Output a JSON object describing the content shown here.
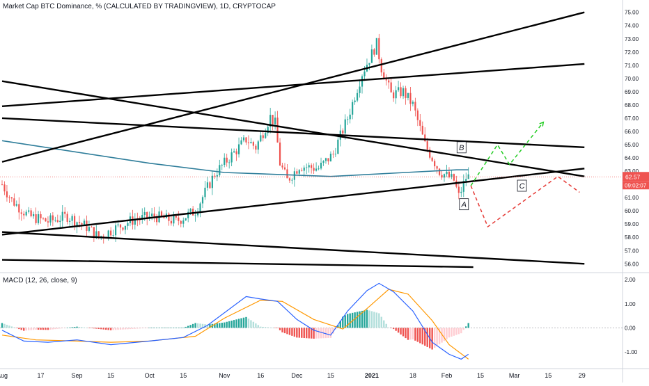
{
  "header": {
    "title": "Market Cap BTC Dominance, % (CALCULATED BY TRADINGVIEW), 1D, CRYPTOCAP",
    "macd_title": "MACD (12, 26, close, 9)"
  },
  "chart_data": [
    {
      "type": "candlestick",
      "title": "Market Cap BTC Dominance, % (CALCULATED BY TRADINGVIEW), 1D, CRYPTOCAP",
      "y_ticks": [
        "75.00",
        "74.00",
        "73.00",
        "72.00",
        "71.00",
        "70.00",
        "69.00",
        "68.00",
        "67.00",
        "66.00",
        "65.00",
        "64.00",
        "63.00",
        "62.00",
        "61.00",
        "60.00",
        "59.00",
        "58.00",
        "57.00",
        "56.00"
      ],
      "ylim": [
        55.7,
        75.3
      ],
      "x_tick_labels": [
        "Aug",
        "17",
        "Sep",
        "15",
        "Oct",
        "15",
        "Nov",
        "16",
        "Dec",
        "15",
        "2021",
        "18",
        "Feb",
        "15",
        "Mar",
        "15",
        "29"
      ],
      "close_anchor_points": [
        {
          "date": "2020-08-01",
          "value": 62.0
        },
        {
          "date": "2020-08-05",
          "value": 60.8
        },
        {
          "date": "2020-08-12",
          "value": 59.6
        },
        {
          "date": "2020-08-20",
          "value": 59.2
        },
        {
          "date": "2020-08-28",
          "value": 59.6
        },
        {
          "date": "2020-09-05",
          "value": 58.8
        },
        {
          "date": "2020-09-10",
          "value": 58.0
        },
        {
          "date": "2020-09-16",
          "value": 58.6
        },
        {
          "date": "2020-09-24",
          "value": 59.3
        },
        {
          "date": "2020-10-03",
          "value": 59.6
        },
        {
          "date": "2020-10-12",
          "value": 59.2
        },
        {
          "date": "2020-10-20",
          "value": 60.0
        },
        {
          "date": "2020-10-28",
          "value": 62.8
        },
        {
          "date": "2020-11-04",
          "value": 64.2
        },
        {
          "date": "2020-11-10",
          "value": 65.4
        },
        {
          "date": "2020-11-14",
          "value": 64.8
        },
        {
          "date": "2020-11-20",
          "value": 67.1
        },
        {
          "date": "2020-11-22",
          "value": 66.6
        },
        {
          "date": "2020-11-24",
          "value": 63.6
        },
        {
          "date": "2020-11-27",
          "value": 62.3
        },
        {
          "date": "2020-12-02",
          "value": 63.4
        },
        {
          "date": "2020-12-10",
          "value": 63.2
        },
        {
          "date": "2020-12-16",
          "value": 64.3
        },
        {
          "date": "2020-12-22",
          "value": 67.0
        },
        {
          "date": "2020-12-28",
          "value": 70.4
        },
        {
          "date": "2021-01-03",
          "value": 72.6
        },
        {
          "date": "2021-01-05",
          "value": 70.8
        },
        {
          "date": "2021-01-09",
          "value": 68.8
        },
        {
          "date": "2021-01-14",
          "value": 69.0
        },
        {
          "date": "2021-01-18",
          "value": 68.0
        },
        {
          "date": "2021-01-23",
          "value": 65.0
        },
        {
          "date": "2021-01-29",
          "value": 63.0
        },
        {
          "date": "2021-02-04",
          "value": 62.3
        },
        {
          "date": "2021-02-06",
          "value": 61.1
        },
        {
          "date": "2021-02-09",
          "value": 62.5
        },
        {
          "date": "2021-02-10",
          "value": 62.57
        }
      ],
      "ma_200_anchor_points": [
        {
          "date": "2020-08-01",
          "value": 65.3
        },
        {
          "date": "2020-10-01",
          "value": 63.6
        },
        {
          "date": "2020-11-01",
          "value": 62.9
        },
        {
          "date": "2020-12-15",
          "value": 62.6
        },
        {
          "date": "2021-01-15",
          "value": 62.9
        },
        {
          "date": "2021-02-05",
          "value": 63.1
        },
        {
          "date": "2021-02-10",
          "value": 63.1
        }
      ],
      "last_price": "62.57",
      "countdown": "09:02:07",
      "trend_lines": [
        {
          "from": {
            "date": "2020-08-01",
            "value": 63.7
          },
          "to": {
            "date": "2021-03-30",
            "value": 75.0
          }
        },
        {
          "from": {
            "date": "2020-08-01",
            "value": 67.9
          },
          "to": {
            "date": "2021-03-30",
            "value": 71.1
          }
        },
        {
          "from": {
            "date": "2020-08-01",
            "value": 69.8
          },
          "to": {
            "date": "2021-03-30",
            "value": 62.6
          }
        },
        {
          "from": {
            "date": "2020-08-01",
            "value": 67.0
          },
          "to": {
            "date": "2021-03-30",
            "value": 64.8
          }
        },
        {
          "from": {
            "date": "2020-08-01",
            "value": 58.2
          },
          "to": {
            "date": "2021-03-30",
            "value": 63.2
          }
        },
        {
          "from": {
            "date": "2020-08-01",
            "value": 58.4
          },
          "to": {
            "date": "2021-03-30",
            "value": 56.0
          }
        },
        {
          "from": {
            "date": "2020-08-01",
            "value": 56.3
          },
          "to": {
            "date": "2021-02-12",
            "value": 55.75
          }
        }
      ],
      "forecast_up": [
        {
          "date": "2021-02-11",
          "value": 61.9
        },
        {
          "date": "2021-02-22",
          "value": 65.0
        },
        {
          "date": "2021-02-27",
          "value": 63.5
        },
        {
          "date": "2021-03-13",
          "value": 66.7
        }
      ],
      "forecast_down": [
        {
          "date": "2021-02-11",
          "value": 61.9
        },
        {
          "date": "2021-02-18",
          "value": 58.8
        },
        {
          "date": "2021-03-19",
          "value": 62.6
        },
        {
          "date": "2021-03-28",
          "value": 61.4
        }
      ],
      "labels": [
        {
          "text": "B",
          "date": "2021-02-07",
          "value": 64.8
        },
        {
          "text": "A",
          "date": "2021-02-08",
          "value": 60.5
        },
        {
          "text": "C",
          "date": "2021-03-04",
          "value": 61.9
        }
      ],
      "colors": {
        "up": "#26a69a",
        "down": "#ef5350",
        "ma": "#2e7d9a",
        "trend": "#000000",
        "forecast_up": "#22cc22",
        "forecast_down": "#e53935"
      }
    },
    {
      "type": "line",
      "title": "MACD (12, 26, close, 9)",
      "y_ticks": [
        "2.00",
        "1.00",
        "0.00",
        "-1.00"
      ],
      "ylim": [
        -1.55,
        2.15
      ],
      "series": [
        {
          "kind": "macd",
          "points": [
            {
              "date": "2020-08-01",
              "value": -0.1
            },
            {
              "date": "2020-08-10",
              "value": -0.55
            },
            {
              "date": "2020-08-20",
              "value": -0.6
            },
            {
              "date": "2020-09-01",
              "value": -0.5
            },
            {
              "date": "2020-09-15",
              "value": -0.7
            },
            {
              "date": "2020-10-01",
              "value": -0.55
            },
            {
              "date": "2020-10-15",
              "value": -0.4
            },
            {
              "date": "2020-10-25",
              "value": 0.1
            },
            {
              "date": "2020-11-10",
              "value": 1.3
            },
            {
              "date": "2020-11-16",
              "value": 1.2
            },
            {
              "date": "2020-11-23",
              "value": 1.1
            },
            {
              "date": "2020-12-01",
              "value": 0.35
            },
            {
              "date": "2020-12-08",
              "value": -0.1
            },
            {
              "date": "2020-12-15",
              "value": -0.3
            },
            {
              "date": "2020-12-22",
              "value": 0.7
            },
            {
              "date": "2020-12-30",
              "value": 1.55
            },
            {
              "date": "2021-01-04",
              "value": 1.85
            },
            {
              "date": "2021-01-10",
              "value": 1.5
            },
            {
              "date": "2021-01-18",
              "value": 0.7
            },
            {
              "date": "2021-01-26",
              "value": -0.6
            },
            {
              "date": "2021-02-02",
              "value": -1.1
            },
            {
              "date": "2021-02-07",
              "value": -1.3
            },
            {
              "date": "2021-02-10",
              "value": -1.1
            }
          ]
        },
        {
          "kind": "signal",
          "points": [
            {
              "date": "2020-08-01",
              "value": -0.3
            },
            {
              "date": "2020-08-15",
              "value": -0.5
            },
            {
              "date": "2020-09-01",
              "value": -0.55
            },
            {
              "date": "2020-09-15",
              "value": -0.6
            },
            {
              "date": "2020-10-01",
              "value": -0.55
            },
            {
              "date": "2020-10-20",
              "value": -0.35
            },
            {
              "date": "2020-11-01",
              "value": 0.4
            },
            {
              "date": "2020-11-16",
              "value": 1.15
            },
            {
              "date": "2020-11-25",
              "value": 1.1
            },
            {
              "date": "2020-12-08",
              "value": 0.35
            },
            {
              "date": "2020-12-20",
              "value": -0.05
            },
            {
              "date": "2020-12-30",
              "value": 0.8
            },
            {
              "date": "2021-01-08",
              "value": 1.6
            },
            {
              "date": "2021-01-16",
              "value": 1.4
            },
            {
              "date": "2021-01-26",
              "value": 0.3
            },
            {
              "date": "2021-02-02",
              "value": -0.7
            },
            {
              "date": "2021-02-10",
              "value": -1.3
            }
          ]
        }
      ],
      "colors": {
        "macd": "#2962ff",
        "signal": "#ff9800",
        "hist_up_strong": "#26a69a",
        "hist_up_weak": "#b2dfdb",
        "hist_down_strong": "#ef5350",
        "hist_down_weak": "#ffcdd2"
      }
    }
  ]
}
